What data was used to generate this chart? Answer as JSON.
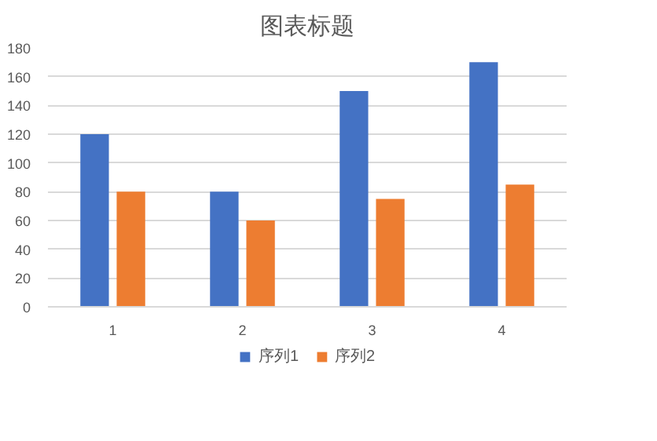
{
  "chart_data": {
    "type": "bar",
    "title": "图表标题",
    "categories": [
      "1",
      "2",
      "3",
      "4"
    ],
    "series": [
      {
        "name": "序列1",
        "color": "#4472c4",
        "values": [
          120,
          80,
          150,
          170
        ]
      },
      {
        "name": "序列2",
        "color": "#ed7d31",
        "values": [
          80,
          60,
          75,
          85
        ]
      }
    ],
    "ylim": [
      0,
      180
    ],
    "yticks": [
      0,
      20,
      40,
      60,
      80,
      100,
      120,
      140,
      160,
      180
    ],
    "grid": "y",
    "legend": "bottom"
  }
}
